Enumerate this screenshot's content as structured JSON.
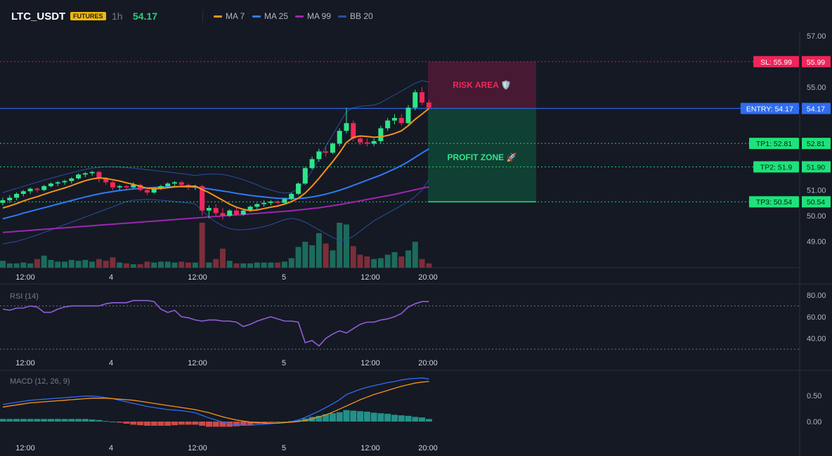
{
  "header": {
    "symbol": "LTC_USDT",
    "badge": "FUTURES",
    "timeframe": "1h",
    "price": "54.17",
    "legend": [
      {
        "label": "MA 7",
        "color": "#f7931a"
      },
      {
        "label": "MA 25",
        "color": "#2f7bf5"
      },
      {
        "label": "MA 99",
        "color": "#9c27b0"
      },
      {
        "label": "BB 20",
        "color": "#2a4f9e"
      }
    ]
  },
  "colors": {
    "up": "#2ee58a",
    "down": "#f0285a",
    "vol_up": "#1c6b5c",
    "vol_down": "#7a2e3a",
    "sl": "#f0245a",
    "entry": "#2f6cf0",
    "tp": "#1de37a"
  },
  "chart_data": [
    {
      "type": "candlestick",
      "panel": "price",
      "x_labels": [
        "12:00",
        "4",
        "12:00",
        "5",
        "12:00",
        "20:00"
      ],
      "y_ticks": [
        "57.00",
        "55.00",
        "51.00",
        "50.00",
        "49.00"
      ],
      "ylim": [
        48.1,
        57.2
      ],
      "candles": [
        [
          50.5,
          50.7,
          50.4,
          50.6
        ],
        [
          50.6,
          50.8,
          50.5,
          50.7
        ],
        [
          50.7,
          50.9,
          50.6,
          50.85
        ],
        [
          50.85,
          51.0,
          50.75,
          50.95
        ],
        [
          50.95,
          51.1,
          50.85,
          51.05
        ],
        [
          51.05,
          51.1,
          50.9,
          51.0
        ],
        [
          51.0,
          51.2,
          50.95,
          51.15
        ],
        [
          51.15,
          51.3,
          51.1,
          51.25
        ],
        [
          51.25,
          51.35,
          51.15,
          51.3
        ],
        [
          51.3,
          51.4,
          51.2,
          51.35
        ],
        [
          51.35,
          51.5,
          51.25,
          51.45
        ],
        [
          51.45,
          51.65,
          51.4,
          51.6
        ],
        [
          51.6,
          51.7,
          51.5,
          51.65
        ],
        [
          51.65,
          51.75,
          51.55,
          51.7
        ],
        [
          51.7,
          51.75,
          51.3,
          51.45
        ],
        [
          51.45,
          51.5,
          51.2,
          51.3
        ],
        [
          51.3,
          51.35,
          51.0,
          51.1
        ],
        [
          51.1,
          51.2,
          51.0,
          51.15
        ],
        [
          51.15,
          51.2,
          51.0,
          51.1
        ],
        [
          51.1,
          51.3,
          51.05,
          51.2
        ],
        [
          51.2,
          51.25,
          50.95,
          51.0
        ],
        [
          51.0,
          51.05,
          50.8,
          50.9
        ],
        [
          50.9,
          51.1,
          50.85,
          51.05
        ],
        [
          51.05,
          51.2,
          51.0,
          51.15
        ],
        [
          51.15,
          51.3,
          51.1,
          51.25
        ],
        [
          51.25,
          51.35,
          51.15,
          51.3
        ],
        [
          51.3,
          51.35,
          51.1,
          51.2
        ],
        [
          51.2,
          51.25,
          51.0,
          51.1
        ],
        [
          51.1,
          51.2,
          51.0,
          51.15
        ],
        [
          51.15,
          51.2,
          50.0,
          50.2
        ],
        [
          50.2,
          50.4,
          49.9,
          50.3
        ],
        [
          50.3,
          50.45,
          50.0,
          50.1
        ],
        [
          50.1,
          50.3,
          49.85,
          50.0
        ],
        [
          50.0,
          50.25,
          49.95,
          50.2
        ],
        [
          50.2,
          50.35,
          50.0,
          50.05
        ],
        [
          50.05,
          50.25,
          50.0,
          50.2
        ],
        [
          50.2,
          50.4,
          50.15,
          50.35
        ],
        [
          50.35,
          50.5,
          50.25,
          50.45
        ],
        [
          50.45,
          50.6,
          50.35,
          50.5
        ],
        [
          50.5,
          50.6,
          50.4,
          50.55
        ],
        [
          50.55,
          50.6,
          50.45,
          50.5
        ],
        [
          50.5,
          50.7,
          50.45,
          50.65
        ],
        [
          50.65,
          50.9,
          50.6,
          50.85
        ],
        [
          50.85,
          51.3,
          50.8,
          51.25
        ],
        [
          51.25,
          51.9,
          51.2,
          51.85
        ],
        [
          51.85,
          52.3,
          51.8,
          52.2
        ],
        [
          52.2,
          52.6,
          52.1,
          52.5
        ],
        [
          52.5,
          52.7,
          52.3,
          52.45
        ],
        [
          52.45,
          52.85,
          52.4,
          52.8
        ],
        [
          52.8,
          53.4,
          52.7,
          53.3
        ],
        [
          53.3,
          54.2,
          53.2,
          53.6
        ],
        [
          53.6,
          53.7,
          52.9,
          53.0
        ],
        [
          53.0,
          53.1,
          52.75,
          52.85
        ],
        [
          52.85,
          53.0,
          52.7,
          52.8
        ],
        [
          52.8,
          53.0,
          52.7,
          52.9
        ],
        [
          52.9,
          53.5,
          52.8,
          53.4
        ],
        [
          53.4,
          53.8,
          53.3,
          53.7
        ],
        [
          53.7,
          53.95,
          53.55,
          53.8
        ],
        [
          53.8,
          53.95,
          53.5,
          53.6
        ],
        [
          53.6,
          54.3,
          53.55,
          54.2
        ],
        [
          54.2,
          54.9,
          54.1,
          54.8
        ],
        [
          54.8,
          55.0,
          54.3,
          54.4
        ],
        [
          54.4,
          54.5,
          54.15,
          54.2
        ]
      ],
      "volumes": [
        8,
        5,
        5,
        6,
        5,
        10,
        14,
        9,
        7,
        7,
        9,
        8,
        9,
        7,
        10,
        8,
        12,
        6,
        5,
        4,
        4,
        7,
        6,
        7,
        7,
        6,
        7,
        6,
        6,
        52,
        6,
        10,
        22,
        8,
        5,
        5,
        5,
        6,
        6,
        6,
        6,
        7,
        11,
        24,
        30,
        26,
        40,
        28,
        20,
        52,
        50,
        25,
        15,
        13,
        10,
        11,
        15,
        18,
        13,
        20,
        30,
        10,
        5
      ],
      "ma7": [
        50.3,
        50.38,
        50.47,
        50.57,
        50.66,
        50.74,
        50.83,
        50.92,
        51.0,
        51.08,
        51.17,
        51.27,
        51.36,
        51.43,
        51.47,
        51.45,
        51.4,
        51.35,
        51.28,
        51.22,
        51.14,
        51.07,
        51.05,
        51.06,
        51.09,
        51.12,
        51.14,
        51.14,
        51.15,
        51.02,
        50.9,
        50.75,
        50.6,
        50.45,
        50.33,
        50.25,
        50.2,
        50.22,
        50.28,
        50.33,
        50.38,
        50.45,
        50.55,
        50.68,
        50.88,
        51.15,
        51.45,
        51.78,
        52.1,
        52.45,
        52.85,
        53.05,
        53.1,
        53.08,
        53.05,
        53.07,
        53.12,
        53.2,
        53.3,
        53.5,
        53.75,
        53.95,
        54.17
      ],
      "ma25": [
        49.88,
        49.95,
        50.02,
        50.1,
        50.17,
        50.24,
        50.31,
        50.38,
        50.45,
        50.52,
        50.59,
        50.66,
        50.73,
        50.79,
        50.85,
        50.9,
        50.94,
        50.98,
        51.01,
        51.04,
        51.06,
        51.08,
        51.1,
        51.11,
        51.12,
        51.13,
        51.13,
        51.12,
        51.11,
        51.08,
        51.04,
        51.0,
        50.96,
        50.92,
        50.87,
        50.83,
        50.79,
        50.76,
        50.73,
        50.7,
        50.68,
        50.67,
        50.66,
        50.67,
        50.69,
        50.73,
        50.78,
        50.84,
        50.91,
        50.99,
        51.08,
        51.18,
        51.28,
        51.38,
        51.48,
        51.58,
        51.7,
        51.82,
        51.95,
        52.1,
        52.27,
        52.44,
        52.6
      ],
      "ma99": [
        49.35,
        49.37,
        49.39,
        49.41,
        49.43,
        49.45,
        49.47,
        49.49,
        49.51,
        49.53,
        49.55,
        49.57,
        49.59,
        49.61,
        49.63,
        49.65,
        49.67,
        49.69,
        49.71,
        49.73,
        49.75,
        49.77,
        49.79,
        49.81,
        49.83,
        49.85,
        49.87,
        49.89,
        49.91,
        49.93,
        49.95,
        49.97,
        49.99,
        50.01,
        50.03,
        50.05,
        50.07,
        50.09,
        50.11,
        50.13,
        50.15,
        50.17,
        50.19,
        50.22,
        50.25,
        50.28,
        50.31,
        50.35,
        50.39,
        50.43,
        50.48,
        50.53,
        50.58,
        50.63,
        50.68,
        50.73,
        50.78,
        50.83,
        50.89,
        50.95,
        51.01,
        51.07,
        51.12
      ],
      "bb_upper": [
        50.9,
        50.98,
        51.06,
        51.14,
        51.22,
        51.3,
        51.38,
        51.46,
        51.53,
        51.6,
        51.67,
        51.74,
        51.8,
        51.85,
        51.88,
        51.9,
        51.9,
        51.89,
        51.87,
        51.85,
        51.82,
        51.79,
        51.76,
        51.73,
        51.7,
        51.67,
        51.63,
        51.6,
        51.56,
        51.6,
        51.62,
        51.62,
        51.6,
        51.55,
        51.48,
        51.4,
        51.3,
        51.2,
        51.08,
        51.0,
        50.92,
        50.88,
        50.9,
        51.05,
        51.35,
        51.75,
        52.2,
        52.7,
        53.15,
        53.6,
        54.05,
        54.2,
        54.25,
        54.28,
        54.3,
        54.4,
        54.55,
        54.7,
        54.85,
        55.0,
        55.15,
        55.25,
        55.2
      ],
      "bb_lower": [
        48.9,
        48.95,
        49.0,
        49.08,
        49.16,
        49.25,
        49.35,
        49.45,
        49.55,
        49.65,
        49.75,
        49.85,
        49.95,
        50.05,
        50.15,
        50.25,
        50.35,
        50.45,
        50.55,
        50.6,
        50.62,
        50.63,
        50.62,
        50.6,
        50.58,
        50.55,
        50.52,
        50.5,
        50.46,
        50.2,
        49.95,
        49.75,
        49.6,
        49.5,
        49.45,
        49.45,
        49.48,
        49.52,
        49.58,
        49.65,
        49.75,
        49.85,
        49.9,
        49.85,
        49.75,
        49.6,
        49.45,
        49.3,
        49.15,
        49.05,
        49.05,
        49.2,
        49.4,
        49.6,
        49.8,
        49.95,
        50.1,
        50.25,
        50.4,
        50.55,
        50.75,
        51.0,
        51.4
      ],
      "trade_levels": [
        {
          "label": "SL: 55.99",
          "price": 55.99,
          "axis_label": "55.99"
        },
        {
          "label": "ENTRY: 54.17",
          "price": 54.17,
          "axis_label": "54.17"
        },
        {
          "label": "TP1: 52.81",
          "price": 52.81,
          "axis_label": "52.81"
        },
        {
          "label": "TP2: 51.9",
          "price": 51.9,
          "axis_label": "51.90"
        },
        {
          "label": "TP3: 50.54",
          "price": 50.54,
          "axis_label": "50.54"
        }
      ],
      "zones": {
        "risk": "RISK AREA 🛡️",
        "profit": "PROFIT ZONE 🚀"
      }
    },
    {
      "type": "line",
      "panel": "rsi",
      "title": "RSI (14)",
      "y_ticks": [
        "80.00",
        "60.00",
        "40.00"
      ],
      "ylim": [
        28,
        85
      ],
      "levels": [
        70,
        30
      ],
      "values": [
        67,
        66,
        68,
        68,
        70,
        69,
        64,
        64,
        67,
        69,
        70,
        70,
        70,
        70,
        70,
        72,
        73,
        73,
        73,
        75,
        75,
        75,
        74,
        67,
        64,
        66,
        60,
        59,
        57,
        56,
        57,
        57,
        56,
        56,
        55,
        51,
        53,
        56,
        58,
        60,
        58,
        56,
        56,
        55,
        36,
        38,
        33,
        40,
        44,
        47,
        45,
        49,
        53,
        55,
        55,
        57,
        58,
        60,
        63,
        69,
        72,
        74,
        74
      ],
      "x_labels": [
        "12:00",
        "4",
        "12:00",
        "5",
        "12:00",
        "20:00"
      ]
    },
    {
      "type": "line+histogram",
      "panel": "macd",
      "title": "MACD (12, 26, 9)",
      "y_ticks": [
        "0.50",
        "0.00"
      ],
      "ylim": [
        -0.22,
        0.95
      ],
      "macd": [
        0.33,
        0.35,
        0.37,
        0.39,
        0.41,
        0.42,
        0.43,
        0.44,
        0.45,
        0.46,
        0.47,
        0.48,
        0.49,
        0.49,
        0.48,
        0.46,
        0.44,
        0.41,
        0.38,
        0.35,
        0.32,
        0.29,
        0.27,
        0.25,
        0.23,
        0.22,
        0.21,
        0.19,
        0.17,
        0.12,
        0.07,
        0.03,
        -0.01,
        -0.04,
        -0.06,
        -0.07,
        -0.07,
        -0.06,
        -0.05,
        -0.04,
        -0.03,
        -0.02,
        0.0,
        0.03,
        0.08,
        0.14,
        0.2,
        0.27,
        0.34,
        0.42,
        0.52,
        0.57,
        0.62,
        0.66,
        0.69,
        0.72,
        0.75,
        0.77,
        0.8,
        0.82,
        0.83,
        0.84,
        0.82
      ],
      "signal": [
        0.28,
        0.3,
        0.32,
        0.34,
        0.36,
        0.37,
        0.38,
        0.39,
        0.4,
        0.41,
        0.42,
        0.43,
        0.44,
        0.45,
        0.45,
        0.45,
        0.44,
        0.43,
        0.42,
        0.41,
        0.39,
        0.37,
        0.35,
        0.33,
        0.31,
        0.29,
        0.27,
        0.25,
        0.23,
        0.2,
        0.17,
        0.13,
        0.09,
        0.06,
        0.03,
        0.01,
        -0.01,
        -0.02,
        -0.03,
        -0.03,
        -0.03,
        -0.02,
        -0.01,
        0.0,
        0.02,
        0.05,
        0.09,
        0.13,
        0.18,
        0.24,
        0.3,
        0.36,
        0.42,
        0.47,
        0.52,
        0.56,
        0.6,
        0.64,
        0.68,
        0.71,
        0.74,
        0.76,
        0.77
      ],
      "histogram": [
        0.05,
        0.05,
        0.05,
        0.05,
        0.05,
        0.05,
        0.05,
        0.05,
        0.05,
        0.05,
        0.05,
        0.05,
        0.05,
        0.04,
        0.03,
        0.01,
        0.0,
        -0.02,
        -0.04,
        -0.06,
        -0.07,
        -0.08,
        -0.08,
        -0.08,
        -0.08,
        -0.07,
        -0.06,
        -0.06,
        -0.06,
        -0.08,
        -0.1,
        -0.1,
        -0.1,
        -0.1,
        -0.09,
        -0.08,
        -0.06,
        -0.04,
        -0.02,
        -0.01,
        0.0,
        0.0,
        0.01,
        0.03,
        0.06,
        0.09,
        0.11,
        0.14,
        0.16,
        0.18,
        0.22,
        0.21,
        0.2,
        0.19,
        0.17,
        0.16,
        0.15,
        0.13,
        0.12,
        0.11,
        0.09,
        0.08,
        0.05
      ],
      "x_labels": [
        "12:00",
        "4",
        "12:00",
        "5",
        "12:00",
        "20:00"
      ]
    }
  ]
}
